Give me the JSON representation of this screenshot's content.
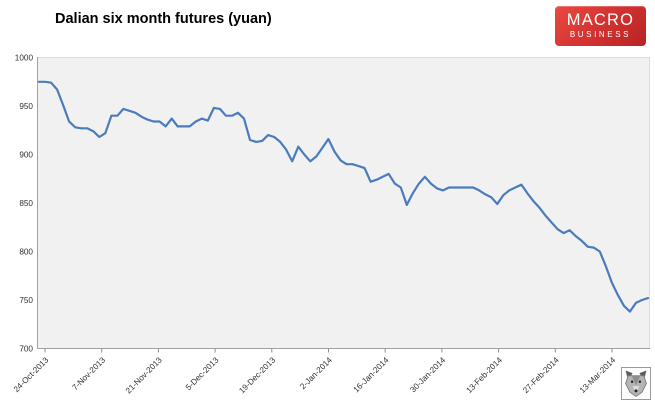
{
  "header": {
    "title": "Dalian six month futures (yuan)",
    "logo": {
      "line1": "MACRO",
      "line2": "BUSINESS",
      "bg_color": "#cc2c2b",
      "text_color": "#ffffff"
    }
  },
  "icons": {
    "corner_logo": "wolf-head-icon"
  },
  "chart_data": {
    "type": "line",
    "title": "Dalian six month futures (yuan)",
    "series": [
      {
        "name": "Dalian six month futures",
        "unit": "yuan"
      }
    ],
    "line_color": "#4a7cbd",
    "plot_bg": "#f1f1f1",
    "axis_color": "#a0a0a0",
    "grid": false,
    "legend_position": "none",
    "ylim": [
      700,
      1000
    ],
    "ytick_step": 50,
    "yticks": [
      "1000",
      "950",
      "900",
      "850",
      "800",
      "750",
      "700"
    ],
    "ytick_values": [
      1000,
      950,
      900,
      850,
      800,
      750,
      700
    ],
    "xtick_labels": [
      "24-Oct-2013",
      "7-Nov-2013",
      "21-Nov-2013",
      "5-Dec-2013",
      "19-Dec-2013",
      "2-Jan-2014",
      "16-Jan-2014",
      "30-Jan-2014",
      "13-Feb-2014",
      "27-Feb-2014",
      "13-Mar-2014"
    ],
    "x": [
      "24-Oct-2013",
      "25-Oct-2013",
      "28-Oct-2013",
      "29-Oct-2013",
      "30-Oct-2013",
      "31-Oct-2013",
      "1-Nov-2013",
      "4-Nov-2013",
      "5-Nov-2013",
      "6-Nov-2013",
      "7-Nov-2013",
      "8-Nov-2013",
      "11-Nov-2013",
      "12-Nov-2013",
      "13-Nov-2013",
      "14-Nov-2013",
      "15-Nov-2013",
      "18-Nov-2013",
      "19-Nov-2013",
      "20-Nov-2013",
      "21-Nov-2013",
      "22-Nov-2013",
      "25-Nov-2013",
      "26-Nov-2013",
      "27-Nov-2013",
      "28-Nov-2013",
      "29-Nov-2013",
      "2-Dec-2013",
      "3-Dec-2013",
      "4-Dec-2013",
      "5-Dec-2013",
      "6-Dec-2013",
      "9-Dec-2013",
      "10-Dec-2013",
      "11-Dec-2013",
      "12-Dec-2013",
      "13-Dec-2013",
      "16-Dec-2013",
      "17-Dec-2013",
      "18-Dec-2013",
      "19-Dec-2013",
      "20-Dec-2013",
      "23-Dec-2013",
      "24-Dec-2013",
      "25-Dec-2013",
      "26-Dec-2013",
      "27-Dec-2013",
      "30-Dec-2013",
      "31-Dec-2013",
      "1-Jan-2014",
      "2-Jan-2014",
      "3-Jan-2014",
      "6-Jan-2014",
      "7-Jan-2014",
      "8-Jan-2014",
      "9-Jan-2014",
      "10-Jan-2014",
      "13-Jan-2014",
      "14-Jan-2014",
      "15-Jan-2014",
      "16-Jan-2014",
      "17-Jan-2014",
      "20-Jan-2014",
      "21-Jan-2014",
      "22-Jan-2014",
      "23-Jan-2014",
      "24-Jan-2014",
      "27-Jan-2014",
      "28-Jan-2014",
      "29-Jan-2014",
      "30-Jan-2014",
      "31-Jan-2014",
      "3-Feb-2014",
      "4-Feb-2014",
      "5-Feb-2014",
      "6-Feb-2014",
      "7-Feb-2014",
      "10-Feb-2014",
      "11-Feb-2014",
      "12-Feb-2014",
      "13-Feb-2014",
      "14-Feb-2014",
      "17-Feb-2014",
      "18-Feb-2014",
      "19-Feb-2014",
      "20-Feb-2014",
      "21-Feb-2014",
      "24-Feb-2014",
      "25-Feb-2014",
      "26-Feb-2014",
      "27-Feb-2014",
      "28-Feb-2014",
      "3-Mar-2014",
      "4-Mar-2014",
      "5-Mar-2014",
      "6-Mar-2014",
      "7-Mar-2014",
      "10-Mar-2014",
      "11-Mar-2014",
      "12-Mar-2014",
      "13-Mar-2014",
      "14-Mar-2014"
    ],
    "values": [
      975,
      975,
      974,
      967,
      951,
      934,
      928,
      927,
      927,
      924,
      918,
      922,
      940,
      940,
      947,
      945,
      943,
      939,
      936,
      934,
      934,
      929,
      937,
      929,
      929,
      929,
      934,
      937,
      935,
      948,
      947,
      940,
      940,
      943,
      937,
      915,
      913,
      914,
      920,
      918,
      913,
      905,
      893,
      908,
      900,
      893,
      898,
      907,
      916,
      903,
      894,
      890,
      890,
      888,
      886,
      872,
      874,
      877,
      880,
      870,
      866,
      848,
      860,
      870,
      877,
      870,
      865,
      863,
      866,
      866,
      866,
      866,
      866,
      863,
      859,
      856,
      849,
      858,
      863,
      866,
      869,
      860,
      852,
      845,
      837,
      830,
      823,
      819,
      822,
      816,
      811,
      805,
      804,
      800,
      785,
      768,
      755,
      744,
      738,
      747,
      750,
      752
    ]
  }
}
